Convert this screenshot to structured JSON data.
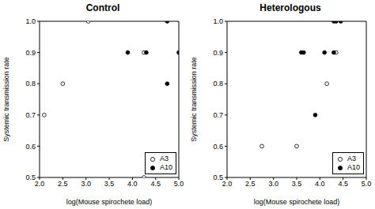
{
  "chart_data": [
    {
      "type": "scatter",
      "title": "Control",
      "x_label": "log(Mouse spirochete load)",
      "y_label": "Systemic transmission rate",
      "xlim": [
        2.0,
        5.0
      ],
      "ylim": [
        0.5,
        1.0
      ],
      "xticks": [
        {
          "value": 2,
          "label": "2.0"
        },
        2.5,
        {
          "value": 3,
          "label": "3.0"
        },
        3.5,
        {
          "value": 4,
          "label": "4.0"
        },
        4.5,
        {
          "value": 5,
          "label": "5.0"
        }
      ],
      "yticks": [
        0.5,
        0.6,
        0.7,
        0.8,
        0.9,
        {
          "value": 1,
          "label": "1.0"
        }
      ],
      "legend": "lower right",
      "grid": false,
      "series": [
        {
          "name": "A3",
          "color": "#000000",
          "marker": "open_circle",
          "x": [
            2.1,
            2.5,
            3.05,
            4.25,
            4.25
          ],
          "values": [
            0.7,
            0.8,
            1.0,
            0.5,
            0.9
          ]
        },
        {
          "name": "A10",
          "color": "#000000",
          "marker": "filled_circle",
          "x": [
            3.9,
            4.3,
            4.75,
            4.75,
            5.0
          ],
          "values": [
            0.9,
            0.9,
            1.0,
            0.8,
            0.9
          ]
        }
      ]
    },
    {
      "type": "scatter",
      "title": "Heterologous",
      "x_label": "log(Mouse spirochete load)",
      "y_label": "Systemic transmission rate",
      "xlim": [
        2.0,
        5.0
      ],
      "ylim": [
        0.5,
        1.0
      ],
      "xticks": [
        {
          "value": 2,
          "label": "2.0"
        },
        2.5,
        {
          "value": 3,
          "label": "3.0"
        },
        3.5,
        {
          "value": 4,
          "label": "4.0"
        },
        4.5,
        {
          "value": 5,
          "label": "5.0"
        }
      ],
      "yticks": [
        0.5,
        0.6,
        0.7,
        0.8,
        0.9,
        {
          "value": 1,
          "label": "1.0"
        }
      ],
      "legend": "lower right",
      "grid": false,
      "series": [
        {
          "name": "A3",
          "color": "#000000",
          "marker": "open_circle",
          "x": [
            2.75,
            3.5,
            4.15,
            4.35
          ],
          "values": [
            0.6,
            0.6,
            0.8,
            0.9
          ]
        },
        {
          "name": "A10",
          "color": "#000000",
          "marker": "filled_circle",
          "x": [
            3.6,
            3.65,
            3.9,
            4.1,
            4.3,
            4.3,
            4.35,
            4.45
          ],
          "values": [
            0.9,
            0.9,
            0.7,
            0.9,
            0.9,
            1.0,
            1.0,
            1.0
          ]
        }
      ]
    }
  ]
}
